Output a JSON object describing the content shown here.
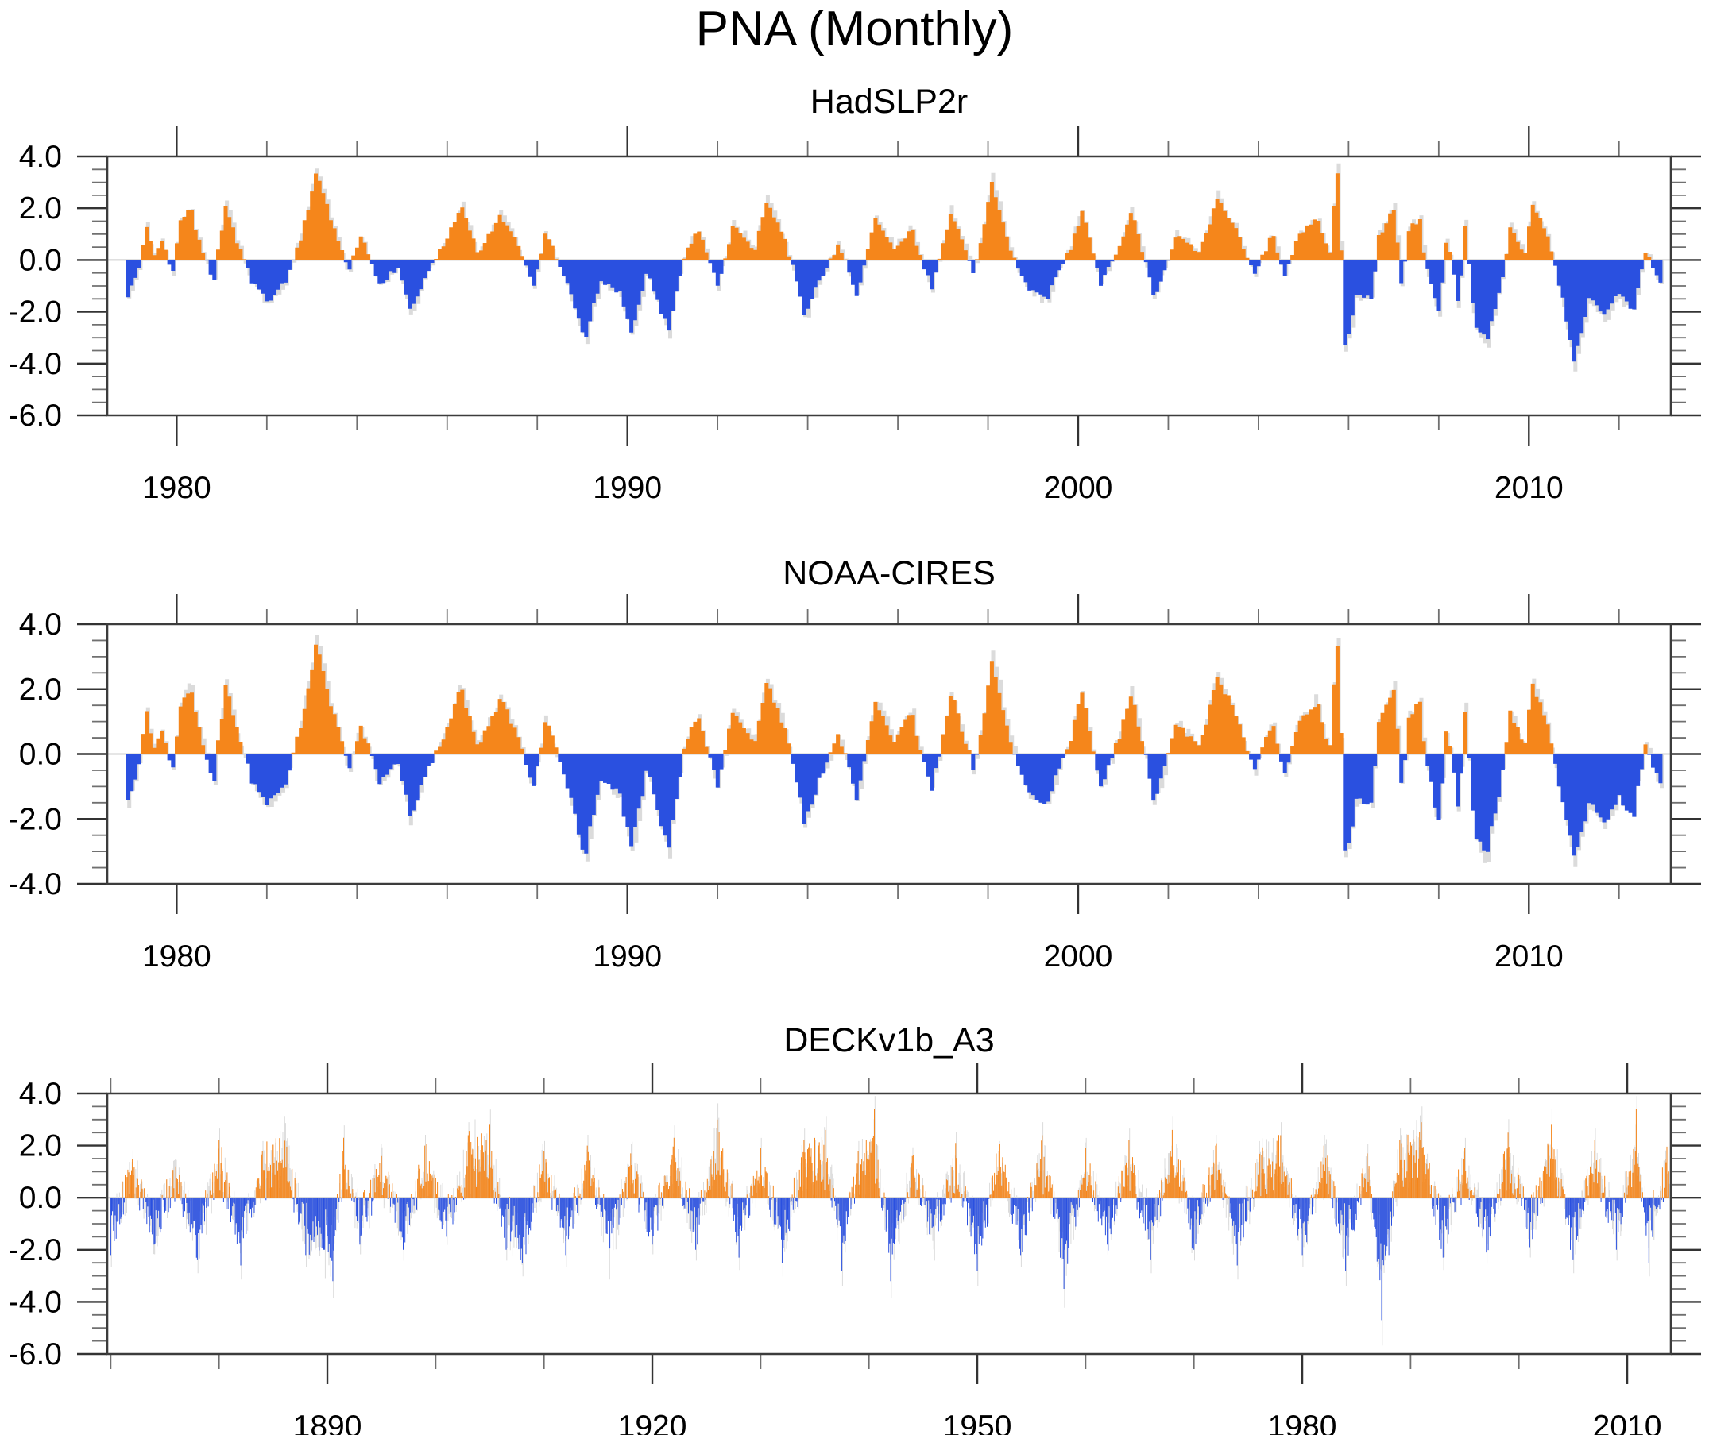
{
  "title": "PNA (Monthly)",
  "colors": {
    "positive": "#F5861B",
    "negative": "#2A50E0",
    "background_series": "#DBDBDB",
    "zero_line": "#CCCCCC",
    "axis": "#3C3C3C",
    "major_tick": "#333333",
    "minor_tick": "#707070",
    "text": "#000000"
  },
  "chart_data": [
    {
      "type": "bar",
      "subtitle": "HadSLP2r",
      "mode": "area",
      "resolution": "monthly",
      "ylim": [
        -6.0,
        4.0
      ],
      "y_major_step": 2.0,
      "y_minor_step": 0.5,
      "y_tick_labels": [
        "4.0",
        "2.0",
        "0.0",
        "-2.0",
        "-4.0",
        "-6.0"
      ],
      "xlim": [
        1978.46,
        2013.15
      ],
      "x_major_ticks": [
        1980,
        1990,
        2000,
        2010
      ],
      "x_tick_labels": [
        "1980",
        "1990",
        "2000",
        "2010"
      ],
      "x_minor_step": 2,
      "series_range": [
        1978.92,
        2012.99
      ],
      "clip": [
        -5.9,
        3.9
      ],
      "noise": {
        "seed": 7,
        "amp": 0.12
      },
      "grey": {
        "seed": 17,
        "scale": 1.08,
        "amp": 0.3,
        "offset": 1.6
      },
      "keypoints": [
        [
          1978.92,
          -1.4
        ],
        [
          1979.17,
          -0.3
        ],
        [
          1979.33,
          1.3
        ],
        [
          1979.5,
          0.2
        ],
        [
          1979.67,
          0.7
        ],
        [
          1979.9,
          -0.4
        ],
        [
          1980.1,
          1.5
        ],
        [
          1980.3,
          1.9
        ],
        [
          1980.6,
          0.3
        ],
        [
          1980.8,
          -0.8
        ],
        [
          1981.1,
          2.1
        ],
        [
          1981.4,
          0.4
        ],
        [
          1981.7,
          -0.9
        ],
        [
          1982.0,
          -1.6
        ],
        [
          1982.4,
          -0.9
        ],
        [
          1982.7,
          0.5
        ],
        [
          1983.1,
          3.3
        ],
        [
          1983.45,
          1.5
        ],
        [
          1983.8,
          -0.4
        ],
        [
          1984.1,
          0.9
        ],
        [
          1984.5,
          -0.9
        ],
        [
          1984.9,
          -0.3
        ],
        [
          1985.2,
          -1.9
        ],
        [
          1985.6,
          -0.4
        ],
        [
          1986.0,
          0.8
        ],
        [
          1986.3,
          2.0
        ],
        [
          1986.7,
          0.3
        ],
        [
          1987.2,
          1.7
        ],
        [
          1987.6,
          0.5
        ],
        [
          1987.9,
          -1.0
        ],
        [
          1988.2,
          1.0
        ],
        [
          1988.6,
          -0.6
        ],
        [
          1989.05,
          -3.0
        ],
        [
          1989.4,
          -0.8
        ],
        [
          1989.8,
          -1.2
        ],
        [
          1990.1,
          -2.8
        ],
        [
          1990.45,
          -0.5
        ],
        [
          1990.9,
          -2.7
        ],
        [
          1991.3,
          0.5
        ],
        [
          1991.6,
          1.1
        ],
        [
          1992.0,
          -1.0
        ],
        [
          1992.35,
          1.3
        ],
        [
          1992.8,
          0.4
        ],
        [
          1993.1,
          2.2
        ],
        [
          1993.5,
          0.8
        ],
        [
          1993.95,
          -2.1
        ],
        [
          1994.3,
          -0.6
        ],
        [
          1994.7,
          0.6
        ],
        [
          1995.1,
          -1.4
        ],
        [
          1995.5,
          1.6
        ],
        [
          1995.9,
          0.4
        ],
        [
          1996.3,
          1.2
        ],
        [
          1996.75,
          -1.1
        ],
        [
          1997.2,
          1.8
        ],
        [
          1997.7,
          -0.5
        ],
        [
          1998.1,
          3.0
        ],
        [
          1998.5,
          0.4
        ],
        [
          1998.9,
          -1.2
        ],
        [
          1999.3,
          -1.5
        ],
        [
          1999.8,
          0.4
        ],
        [
          2000.1,
          1.9
        ],
        [
          2000.5,
          -1.0
        ],
        [
          2000.9,
          0.5
        ],
        [
          2001.2,
          1.8
        ],
        [
          2001.7,
          -1.4
        ],
        [
          2002.2,
          0.9
        ],
        [
          2002.7,
          0.3
        ],
        [
          2003.1,
          2.4
        ],
        [
          2003.5,
          1.2
        ],
        [
          2003.9,
          -0.5
        ],
        [
          2004.3,
          0.9
        ],
        [
          2004.6,
          -0.6
        ],
        [
          2004.9,
          1.0
        ],
        [
          2005.3,
          1.55
        ],
        [
          2005.55,
          0.3
        ],
        [
          2005.75,
          3.35
        ],
        [
          2005.95,
          -3.3
        ],
        [
          2006.2,
          -1.4
        ],
        [
          2006.5,
          -1.5
        ],
        [
          2006.7,
          1.0
        ],
        [
          2007.0,
          1.95
        ],
        [
          2007.2,
          -0.9
        ],
        [
          2007.35,
          1.15
        ],
        [
          2007.55,
          1.6
        ],
        [
          2007.8,
          -0.9
        ],
        [
          2008.0,
          -2.0
        ],
        [
          2008.2,
          0.7
        ],
        [
          2008.45,
          -1.6
        ],
        [
          2008.6,
          1.3
        ],
        [
          2008.8,
          -2.6
        ],
        [
          2009.05,
          -3.05
        ],
        [
          2009.35,
          -1.3
        ],
        [
          2009.6,
          1.3
        ],
        [
          2009.9,
          0.3
        ],
        [
          2010.1,
          2.15
        ],
        [
          2010.4,
          0.9
        ],
        [
          2010.7,
          -1.0
        ],
        [
          2011.0,
          -3.95
        ],
        [
          2011.35,
          -1.5
        ],
        [
          2011.7,
          -2.1
        ],
        [
          2012.0,
          -1.3
        ],
        [
          2012.3,
          -1.9
        ],
        [
          2012.6,
          0.3
        ],
        [
          2012.9,
          -0.9
        ],
        [
          2013.05,
          -0.4
        ]
      ]
    },
    {
      "type": "bar",
      "subtitle": "NOAA-CIRES",
      "mode": "area",
      "resolution": "monthly",
      "ylim": [
        -4.0,
        4.0
      ],
      "y_major_step": 2.0,
      "y_minor_step": 0.5,
      "y_tick_labels": [
        "4.0",
        "2.0",
        "0.0",
        "-2.0",
        "-4.0"
      ],
      "xlim": [
        1978.46,
        2013.15
      ],
      "x_major_ticks": [
        1980,
        1990,
        2000,
        2010
      ],
      "x_tick_labels": [
        "1980",
        "1990",
        "2000",
        "2010"
      ],
      "x_minor_step": 2,
      "series_range": [
        1978.92,
        2012.99
      ],
      "clip": [
        -3.9,
        3.9
      ],
      "noise": {
        "seed": 13,
        "amp": 0.12
      },
      "grey": {
        "seed": 23,
        "scale": 1.08,
        "amp": 0.3,
        "offset": 1.6
      },
      "keypoints": [
        [
          1978.92,
          -1.4
        ],
        [
          1979.17,
          -0.3
        ],
        [
          1979.33,
          1.3
        ],
        [
          1979.5,
          0.2
        ],
        [
          1979.67,
          0.7
        ],
        [
          1979.9,
          -0.4
        ],
        [
          1980.1,
          1.5
        ],
        [
          1980.3,
          1.9
        ],
        [
          1980.6,
          0.3
        ],
        [
          1980.8,
          -0.8
        ],
        [
          1981.1,
          2.1
        ],
        [
          1981.4,
          0.4
        ],
        [
          1981.7,
          -0.9
        ],
        [
          1982.0,
          -1.6
        ],
        [
          1982.4,
          -0.9
        ],
        [
          1982.7,
          0.5
        ],
        [
          1983.1,
          3.35
        ],
        [
          1983.45,
          1.5
        ],
        [
          1983.8,
          -0.4
        ],
        [
          1984.1,
          0.9
        ],
        [
          1984.5,
          -0.9
        ],
        [
          1984.9,
          -0.3
        ],
        [
          1985.2,
          -1.9
        ],
        [
          1985.6,
          -0.4
        ],
        [
          1986.0,
          0.8
        ],
        [
          1986.3,
          2.0
        ],
        [
          1986.7,
          0.3
        ],
        [
          1987.2,
          1.7
        ],
        [
          1987.6,
          0.5
        ],
        [
          1987.9,
          -1.0
        ],
        [
          1988.2,
          1.0
        ],
        [
          1988.6,
          -0.6
        ],
        [
          1989.05,
          -3.1
        ],
        [
          1989.4,
          -0.8
        ],
        [
          1989.8,
          -1.2
        ],
        [
          1990.1,
          -2.8
        ],
        [
          1990.45,
          -0.5
        ],
        [
          1990.9,
          -2.9
        ],
        [
          1991.3,
          0.5
        ],
        [
          1991.6,
          1.1
        ],
        [
          1992.0,
          -1.0
        ],
        [
          1992.35,
          1.3
        ],
        [
          1992.8,
          0.4
        ],
        [
          1993.1,
          2.2
        ],
        [
          1993.5,
          0.8
        ],
        [
          1993.95,
          -2.1
        ],
        [
          1994.3,
          -0.6
        ],
        [
          1994.7,
          0.6
        ],
        [
          1995.1,
          -1.4
        ],
        [
          1995.5,
          1.6
        ],
        [
          1995.9,
          0.4
        ],
        [
          1996.3,
          1.2
        ],
        [
          1996.75,
          -1.1
        ],
        [
          1997.2,
          1.8
        ],
        [
          1997.7,
          -0.5
        ],
        [
          1998.1,
          2.9
        ],
        [
          1998.5,
          0.4
        ],
        [
          1998.9,
          -1.2
        ],
        [
          1999.3,
          -1.5
        ],
        [
          1999.8,
          0.4
        ],
        [
          2000.1,
          1.9
        ],
        [
          2000.5,
          -1.0
        ],
        [
          2000.9,
          0.5
        ],
        [
          2001.2,
          1.8
        ],
        [
          2001.7,
          -1.4
        ],
        [
          2002.2,
          0.9
        ],
        [
          2002.7,
          0.3
        ],
        [
          2003.1,
          2.4
        ],
        [
          2003.5,
          1.2
        ],
        [
          2003.9,
          -0.5
        ],
        [
          2004.3,
          0.9
        ],
        [
          2004.6,
          -0.6
        ],
        [
          2004.9,
          1.0
        ],
        [
          2005.3,
          1.55
        ],
        [
          2005.55,
          0.3
        ],
        [
          2005.75,
          3.3
        ],
        [
          2005.95,
          -3.0
        ],
        [
          2006.2,
          -1.4
        ],
        [
          2006.5,
          -1.5
        ],
        [
          2006.7,
          1.0
        ],
        [
          2007.0,
          1.95
        ],
        [
          2007.2,
          -0.9
        ],
        [
          2007.35,
          1.15
        ],
        [
          2007.55,
          1.6
        ],
        [
          2007.8,
          -0.9
        ],
        [
          2008.0,
          -2.0
        ],
        [
          2008.2,
          0.7
        ],
        [
          2008.45,
          -1.6
        ],
        [
          2008.6,
          1.3
        ],
        [
          2008.8,
          -2.6
        ],
        [
          2009.05,
          -3.0
        ],
        [
          2009.35,
          -1.3
        ],
        [
          2009.6,
          1.3
        ],
        [
          2009.9,
          0.3
        ],
        [
          2010.1,
          2.15
        ],
        [
          2010.4,
          0.9
        ],
        [
          2010.7,
          -1.0
        ],
        [
          2011.0,
          -3.15
        ],
        [
          2011.35,
          -1.5
        ],
        [
          2011.7,
          -2.1
        ],
        [
          2012.0,
          -1.3
        ],
        [
          2012.3,
          -1.9
        ],
        [
          2012.6,
          0.3
        ],
        [
          2012.9,
          -0.9
        ],
        [
          2013.05,
          -0.4
        ]
      ]
    },
    {
      "type": "bar",
      "subtitle": "DECKv1b_A3",
      "mode": "spike",
      "resolution": "monthly",
      "ylim": [
        -6.0,
        4.0
      ],
      "y_major_step": 2.0,
      "y_minor_step": 0.5,
      "y_tick_labels": [
        "4.0",
        "2.0",
        "0.0",
        "-2.0",
        "-4.0",
        "-6.0"
      ],
      "xlim": [
        1869.68,
        2014.03
      ],
      "x_major_ticks": [
        1890,
        1920,
        1950,
        1980,
        2010
      ],
      "x_tick_labels": [
        "1890",
        "1920",
        "1950",
        "1980",
        "2010"
      ],
      "x_minor_step": 10,
      "series_range": [
        1870.0,
        2013.9
      ],
      "clip": [
        -5.9,
        3.9
      ],
      "noise": {
        "seed": 5,
        "amp": 1.5
      },
      "grey": {
        "seed": 9,
        "scale": 1.15,
        "amp": 1.7,
        "offset": 0.8
      },
      "keypoints": [
        [
          1870,
          -2.2
        ],
        [
          1872,
          1.5
        ],
        [
          1874,
          -1.8
        ],
        [
          1876,
          1.2
        ],
        [
          1878,
          -2.4
        ],
        [
          1880,
          2.2
        ],
        [
          1882,
          -2.6
        ],
        [
          1884,
          1.8
        ],
        [
          1886,
          2.6
        ],
        [
          1888,
          -2.2
        ],
        [
          1890.5,
          -3.2
        ],
        [
          1891.5,
          2.3
        ],
        [
          1893,
          -1.8
        ],
        [
          1895,
          1.6
        ],
        [
          1897,
          -2.0
        ],
        [
          1899,
          2.0
        ],
        [
          1901,
          -1.5
        ],
        [
          1903,
          2.4
        ],
        [
          1905,
          2.8
        ],
        [
          1906.5,
          -2.0
        ],
        [
          1908,
          -2.5
        ],
        [
          1910,
          1.8
        ],
        [
          1912,
          -2.2
        ],
        [
          1914,
          2.0
        ],
        [
          1916,
          -2.6
        ],
        [
          1918,
          1.7
        ],
        [
          1920,
          -1.8
        ],
        [
          1922,
          2.3
        ],
        [
          1924,
          -2.0
        ],
        [
          1926,
          3.0
        ],
        [
          1928,
          -2.3
        ],
        [
          1930,
          1.9
        ],
        [
          1932,
          -2.5
        ],
        [
          1934,
          2.2
        ],
        [
          1936,
          2.6
        ],
        [
          1937.5,
          -2.8
        ],
        [
          1939,
          1.8
        ],
        [
          1940.5,
          3.4
        ],
        [
          1942,
          -3.2
        ],
        [
          1944,
          1.6
        ],
        [
          1946,
          -2.0
        ],
        [
          1948,
          2.1
        ],
        [
          1950,
          -2.8
        ],
        [
          1952,
          1.8
        ],
        [
          1954,
          -2.2
        ],
        [
          1956,
          2.4
        ],
        [
          1958,
          -3.5
        ],
        [
          1960,
          1.9
        ],
        [
          1962,
          -1.8
        ],
        [
          1964,
          2.2
        ],
        [
          1966,
          -2.4
        ],
        [
          1968,
          2.6
        ],
        [
          1970,
          -2.0
        ],
        [
          1972,
          2.0
        ],
        [
          1974,
          -2.6
        ],
        [
          1976,
          1.8
        ],
        [
          1978,
          2.4
        ],
        [
          1980,
          -2.2
        ],
        [
          1982,
          2.0
        ],
        [
          1984,
          -2.8
        ],
        [
          1986,
          1.7
        ],
        [
          1987.3,
          -4.7
        ],
        [
          1989,
          2.2
        ],
        [
          1991,
          2.9
        ],
        [
          1993,
          -2.3
        ],
        [
          1995,
          1.9
        ],
        [
          1997,
          -2.1
        ],
        [
          1999,
          2.5
        ],
        [
          2001,
          -1.9
        ],
        [
          2003,
          2.8
        ],
        [
          2005,
          -2.4
        ],
        [
          2007,
          2.2
        ],
        [
          2009,
          -2.0
        ],
        [
          2010.8,
          3.4
        ],
        [
          2012,
          -2.5
        ],
        [
          2013.5,
          1.5
        ]
      ]
    }
  ]
}
